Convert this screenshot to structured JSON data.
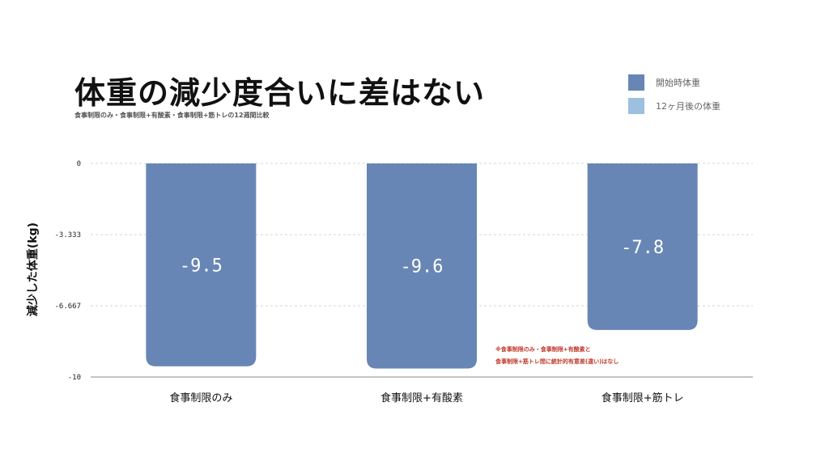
{
  "chart_data": {
    "type": "bar",
    "title": "体重の減少度合いに差はない",
    "subtitle": "食事制限のみ・食事制限+有酸素・食事制限+筋トレの12週間比較",
    "ylabel": "減少した体重(kg)",
    "xlabel": "",
    "ylim": [
      -10,
      0
    ],
    "yticks": [
      "0",
      "-3.333",
      "-6.667",
      "-10"
    ],
    "ytick_values": [
      0,
      -3.333,
      -6.667,
      -10
    ],
    "categories": [
      "食事制限のみ",
      "食事制限+有酸素",
      "食事制限+筋トレ"
    ],
    "values": [
      -9.5,
      -9.6,
      -7.8
    ],
    "data_labels": [
      "-9.5",
      "-9.6",
      "-7.8"
    ],
    "bar_color": "#6786b5",
    "grid": true,
    "legend_position": "top-right",
    "legend": [
      {
        "label": "開始時体重",
        "color": "#6786b5"
      },
      {
        "label": "12ヶ月後の体重",
        "color": "#9dbfe0"
      }
    ],
    "note_lines": [
      "※食事制限のみ・食事制限+有酸素と",
      "食事制限+筋トレ間に統計的有意差(違い)はなし"
    ]
  }
}
